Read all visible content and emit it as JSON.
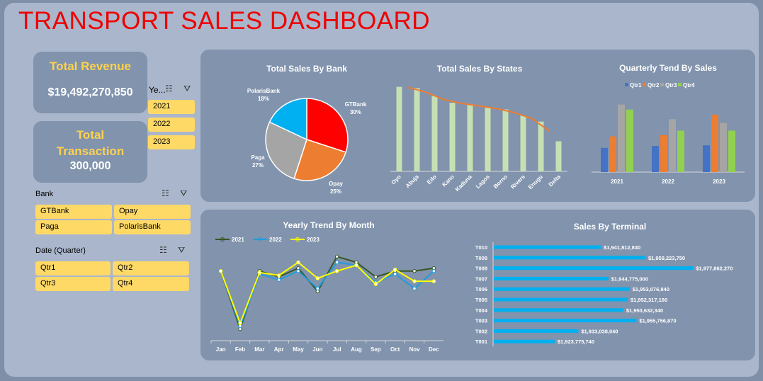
{
  "title": "TRANSPORT SALES DASHBOARD",
  "kpis": {
    "revenue_label": "Total Revenue",
    "revenue_value": "$19,492,270,850",
    "transaction_label_1": "Total",
    "transaction_label_2": "Transaction",
    "transaction_value": "300,000"
  },
  "slicers": {
    "year": {
      "header": "Ye...",
      "items": [
        "2021",
        "2022",
        "2023"
      ]
    },
    "bank": {
      "header": "Bank",
      "items": [
        "GTBank",
        "Opay",
        "Paga",
        "PolarisBank"
      ]
    },
    "quarter": {
      "header": "Date (Quarter)",
      "items": [
        "Qtr1",
        "Qtr2",
        "Qtr3",
        "Qtr4"
      ]
    },
    "multiselect_icon": "multi-select-icon",
    "filter_icon": "clear-filter-icon"
  },
  "colors": {
    "accent_title": "#ee0000",
    "kpi_label": "#ffd24d",
    "slicer_item": "#ffd966",
    "panel": "#8193ad"
  },
  "chart_data": [
    {
      "id": "bank_pie",
      "type": "pie",
      "title": "Total Sales By Bank",
      "labels": [
        "GTBank",
        "Opay",
        "Paga",
        "PolarisBank"
      ],
      "values": [
        30,
        25,
        27,
        18
      ],
      "value_labels": [
        "30%",
        "25%",
        "27%",
        "18%"
      ],
      "colors": [
        "#ff0000",
        "#ed7d31",
        "#a5a5a5",
        "#00b0f0"
      ]
    },
    {
      "id": "states_bar",
      "type": "bar",
      "title": "Total Sales By States",
      "categories": [
        "Oyo",
        "Abuja",
        "Edo",
        "Kano",
        "Kaduna",
        "Lagos",
        "Borno",
        "Rivers",
        "Enugu",
        "Delta"
      ],
      "values": [
        2020,
        1990,
        1800,
        1640,
        1610,
        1520,
        1480,
        1330,
        1190,
        720
      ],
      "trendline": "moving-average",
      "ylim": [
        0,
        2200
      ],
      "bar_color": "#c6e0b4",
      "trend_color": "#ed7d31"
    },
    {
      "id": "quarterly_bar",
      "type": "bar",
      "title": "Quarterly Tend By Sales",
      "categories": [
        "2021",
        "2022",
        "2023"
      ],
      "series": [
        {
          "name": "Qtr1",
          "values": [
            380,
            410,
            420
          ],
          "color": "#4472c4"
        },
        {
          "name": "Qtr2",
          "values": [
            560,
            580,
            900
          ],
          "color": "#ed7d31"
        },
        {
          "name": "Qtr3",
          "values": [
            1060,
            830,
            770
          ],
          "color": "#a5a5a5"
        },
        {
          "name": "Qtr4",
          "values": [
            980,
            650,
            650
          ],
          "color": "#92d050"
        }
      ],
      "ylim": [
        0,
        1200
      ]
    },
    {
      "id": "monthly_line",
      "type": "line",
      "title": "Yearly Trend By Month",
      "categories": [
        "Jan",
        "Feb",
        "Mar",
        "Apr",
        "May",
        "Jun",
        "Jul",
        "Aug",
        "Sep",
        "Oct",
        "Nov",
        "Dec"
      ],
      "series": [
        {
          "name": "2021",
          "values": [
            640,
            440,
            640,
            620,
            650,
            570,
            690,
            670,
            620,
            640,
            640,
            650
          ],
          "color": "#375623"
        },
        {
          "name": "2022",
          "values": [
            640,
            450,
            630,
            610,
            640,
            580,
            670,
            660,
            600,
            630,
            580,
            640
          ],
          "color": "#1f9bde"
        },
        {
          "name": "2023",
          "values": [
            640,
            460,
            635,
            625,
            670,
            615,
            640,
            660,
            595,
            645,
            605,
            605
          ],
          "color": "#ffff00"
        }
      ],
      "ylim": [
        400,
        720
      ]
    },
    {
      "id": "terminal_hbar",
      "type": "bar",
      "orientation": "horizontal",
      "title": "Sales By Terminal",
      "categories": [
        "T010",
        "T009",
        "T008",
        "T007",
        "T006",
        "T005",
        "T004",
        "T003",
        "T002",
        "T001"
      ],
      "values": [
        1941812840,
        1959223750,
        1977862270,
        1944775000,
        1953076840,
        1952317160,
        1950632340,
        1955756870,
        1933038040,
        1923775740
      ],
      "value_labels": [
        "$1,941,812,840",
        "$1,959,223,750",
        "$1,977,862,270",
        "$1,944,775,000",
        "$1,953,076,840",
        "$1,952,317,160",
        "$1,950,632,340",
        "$1,955,756,870",
        "$1,933,038,040",
        "$1,923,775,740"
      ],
      "xlim": [
        1900000000,
        1980000000
      ],
      "bar_color": "#00b0f0"
    }
  ]
}
